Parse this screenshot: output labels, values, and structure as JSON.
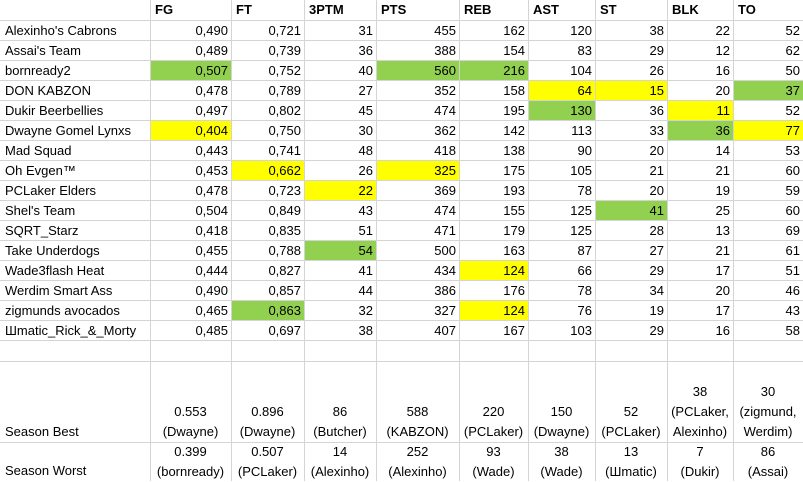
{
  "columns": [
    "FG",
    "FT",
    "3PTM",
    "PTS",
    "REB",
    "AST",
    "ST",
    "BLK",
    "TO"
  ],
  "colors": {
    "green": "#92d050",
    "yellow": "#ffff00"
  },
  "rows": [
    {
      "name": "Alexinho's Cabrons",
      "values": [
        "0,490",
        "0,721",
        "31",
        "455",
        "162",
        "120",
        "38",
        "22",
        "52"
      ],
      "hl": [
        "",
        "",
        "",
        "",
        "",
        "",
        "",
        "",
        ""
      ]
    },
    {
      "name": "Assai's Team",
      "values": [
        "0,489",
        "0,739",
        "36",
        "388",
        "154",
        "83",
        "29",
        "12",
        "62"
      ],
      "hl": [
        "",
        "",
        "",
        "",
        "",
        "",
        "",
        "",
        ""
      ]
    },
    {
      "name": "bornready2",
      "values": [
        "0,507",
        "0,752",
        "40",
        "560",
        "216",
        "104",
        "26",
        "16",
        "50"
      ],
      "hl": [
        "g",
        "",
        "",
        "g",
        "g",
        "",
        "",
        "",
        ""
      ]
    },
    {
      "name": "DON KABZON",
      "values": [
        "0,478",
        "0,789",
        "27",
        "352",
        "158",
        "64",
        "15",
        "20",
        "37"
      ],
      "hl": [
        "",
        "",
        "",
        "",
        "",
        "y",
        "y",
        "",
        "g"
      ]
    },
    {
      "name": "Dukir Beerbellies",
      "values": [
        "0,497",
        "0,802",
        "45",
        "474",
        "195",
        "130",
        "36",
        "11",
        "52"
      ],
      "hl": [
        "",
        "",
        "",
        "",
        "",
        "g",
        "",
        "y",
        ""
      ]
    },
    {
      "name": "Dwayne Gomel Lynxs",
      "values": [
        "0,404",
        "0,750",
        "30",
        "362",
        "142",
        "113",
        "33",
        "36",
        "77"
      ],
      "hl": [
        "y",
        "",
        "",
        "",
        "",
        "",
        "",
        "g",
        "y"
      ]
    },
    {
      "name": "Mad Squad",
      "values": [
        "0,443",
        "0,741",
        "48",
        "418",
        "138",
        "90",
        "20",
        "14",
        "53"
      ],
      "hl": [
        "",
        "",
        "",
        "",
        "",
        "",
        "",
        "",
        ""
      ]
    },
    {
      "name": "Oh Evgen™",
      "values": [
        "0,453",
        "0,662",
        "26",
        "325",
        "175",
        "105",
        "21",
        "21",
        "60"
      ],
      "hl": [
        "",
        "y",
        "",
        "y",
        "",
        "",
        "",
        "",
        ""
      ]
    },
    {
      "name": "PCLaker Elders",
      "values": [
        "0,478",
        "0,723",
        "22",
        "369",
        "193",
        "78",
        "20",
        "19",
        "59"
      ],
      "hl": [
        "",
        "",
        "y",
        "",
        "",
        "",
        "",
        "",
        ""
      ]
    },
    {
      "name": "Shel's Team",
      "values": [
        "0,504",
        "0,849",
        "43",
        "474",
        "155",
        "125",
        "41",
        "25",
        "60"
      ],
      "hl": [
        "",
        "",
        "",
        "",
        "",
        "",
        "g",
        "",
        ""
      ]
    },
    {
      "name": "SQRT_Starz",
      "values": [
        "0,418",
        "0,835",
        "51",
        "471",
        "179",
        "125",
        "28",
        "13",
        "69"
      ],
      "hl": [
        "",
        "",
        "",
        "",
        "",
        "",
        "",
        "",
        ""
      ]
    },
    {
      "name": "Take Underdogs",
      "values": [
        "0,455",
        "0,788",
        "54",
        "500",
        "163",
        "87",
        "27",
        "21",
        "61"
      ],
      "hl": [
        "",
        "",
        "g",
        "",
        "",
        "",
        "",
        "",
        ""
      ]
    },
    {
      "name": "Wade3flash Heat",
      "values": [
        "0,444",
        "0,827",
        "41",
        "434",
        "124",
        "66",
        "29",
        "17",
        "51"
      ],
      "hl": [
        "",
        "",
        "",
        "",
        "y",
        "",
        "",
        "",
        ""
      ]
    },
    {
      "name": "Werdim Smart Ass",
      "values": [
        "0,490",
        "0,857",
        "44",
        "386",
        "176",
        "78",
        "34",
        "20",
        "46"
      ],
      "hl": [
        "",
        "",
        "",
        "",
        "",
        "",
        "",
        "",
        ""
      ]
    },
    {
      "name": "zigmunds avocados",
      "values": [
        "0,465",
        "0,863",
        "32",
        "327",
        "124",
        "76",
        "19",
        "17",
        "43"
      ],
      "hl": [
        "",
        "g",
        "",
        "",
        "y",
        "",
        "",
        "",
        ""
      ]
    },
    {
      "name": "Шmatic_Rick_&_Morty",
      "values": [
        "0,485",
        "0,697",
        "38",
        "407",
        "167",
        "103",
        "29",
        "16",
        "58"
      ],
      "hl": [
        "",
        "",
        "",
        "",
        "",
        "",
        "",
        "",
        ""
      ]
    }
  ],
  "season_best": {
    "label": "Season Best",
    "cells": [
      [
        "0.553",
        "(Dwayne)"
      ],
      [
        "0.896",
        "(Dwayne)"
      ],
      [
        "86",
        "(Butcher)"
      ],
      [
        "588",
        "(KABZON)"
      ],
      [
        "220",
        "(PCLaker)"
      ],
      [
        "150",
        "(Dwayne)"
      ],
      [
        "52",
        "(PCLaker)"
      ],
      [
        "38",
        "(PCLaker,",
        "Alexinho)"
      ],
      [
        "30",
        "(zigmund,",
        "Werdim)"
      ]
    ]
  },
  "season_worst": {
    "label": "Season Worst",
    "cells": [
      [
        "0.399",
        "(bornready)"
      ],
      [
        "0.507",
        "(PCLaker)"
      ],
      [
        "14",
        "(Alexinho)"
      ],
      [
        "252",
        "(Alexinho)"
      ],
      [
        "93",
        "(Wade)"
      ],
      [
        "38",
        "(Wade)"
      ],
      [
        "13",
        "(Шmatic)"
      ],
      [
        "7",
        "(Dukir)"
      ],
      [
        "86",
        "(Assai)"
      ]
    ]
  }
}
